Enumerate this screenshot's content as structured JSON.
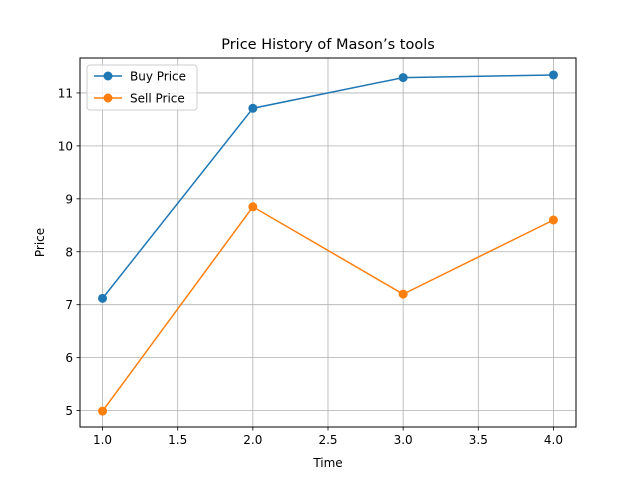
{
  "chart_data": {
    "type": "line",
    "title": "Price History of Mason’s tools",
    "xlabel": "Time",
    "ylabel": "Price",
    "x": [
      1.0,
      2.0,
      3.0,
      4.0
    ],
    "series": [
      {
        "name": "Buy Price",
        "values": [
          7.12,
          10.71,
          11.29,
          11.34
        ],
        "color": "#1f77b4"
      },
      {
        "name": "Sell Price",
        "values": [
          4.99,
          8.85,
          7.2,
          8.6
        ],
        "color": "#ff7f0e"
      }
    ],
    "xlim": [
      0.85,
      4.15
    ],
    "ylim": [
      4.69,
      11.66
    ],
    "xticks": [
      1.0,
      1.5,
      2.0,
      2.5,
      3.0,
      3.5,
      4.0
    ],
    "xtick_labels": [
      "1.0",
      "1.5",
      "2.0",
      "2.5",
      "3.0",
      "3.5",
      "4.0"
    ],
    "yticks": [
      5,
      6,
      7,
      8,
      9,
      10,
      11
    ],
    "ytick_labels": [
      "5",
      "6",
      "7",
      "8",
      "9",
      "10",
      "11"
    ],
    "grid": true,
    "legend_position": "top-left",
    "markers": true
  }
}
